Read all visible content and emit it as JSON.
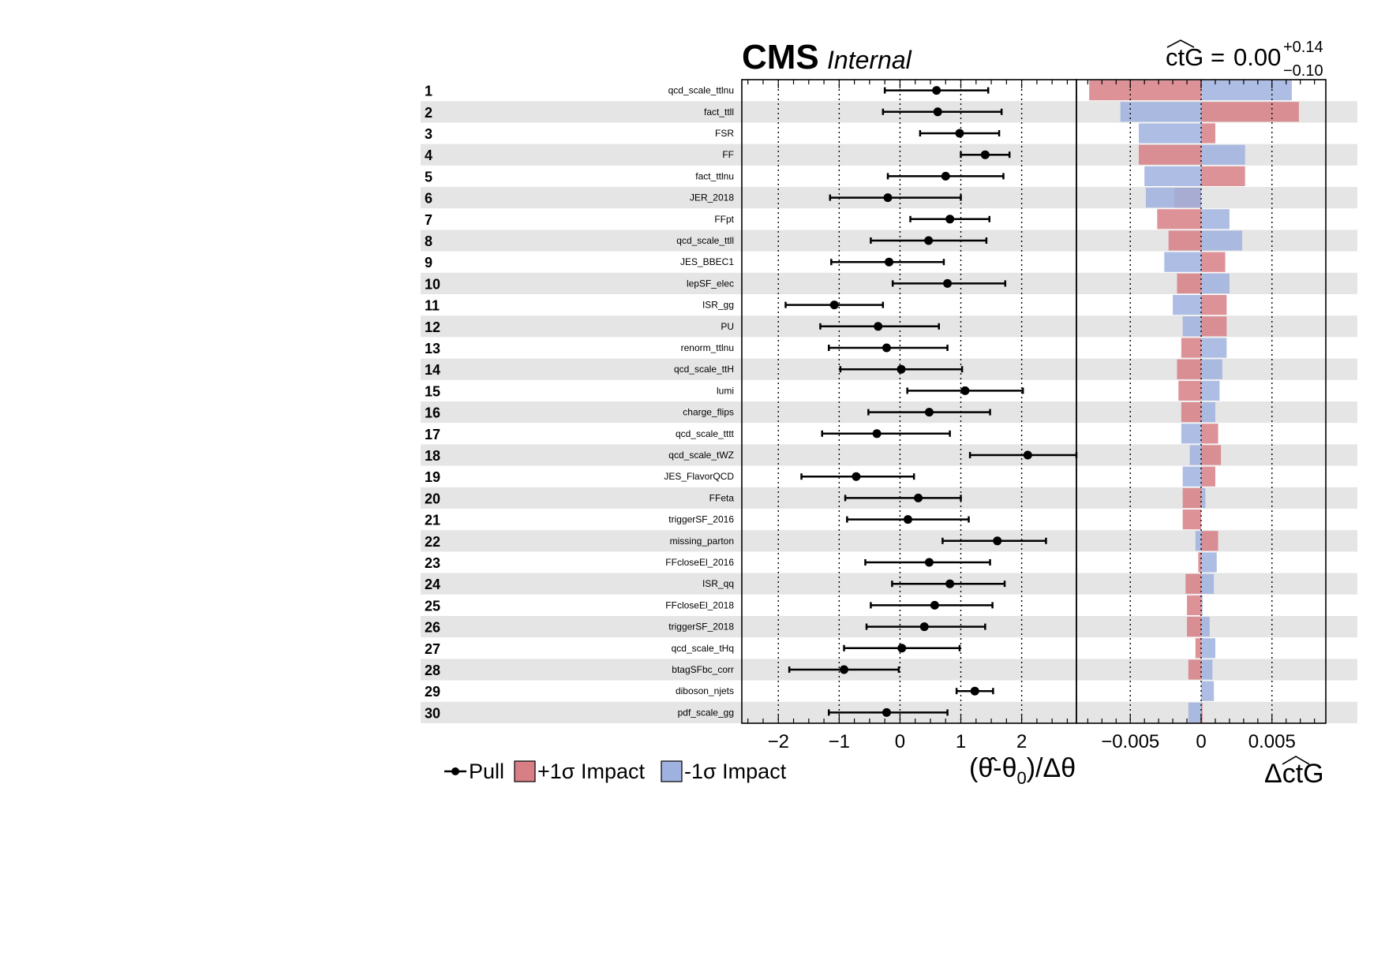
{
  "header": {
    "experiment": "CMS",
    "status": "Internal",
    "poi_result": {
      "name": "ctG",
      "value": "0.00",
      "err_up": "+0.14",
      "err_down": "−0.10"
    }
  },
  "legend": {
    "pull": "Pull",
    "impact_up": "+1σ Impact",
    "impact_down": "-1σ Impact"
  },
  "colors": {
    "impact_up": "#d77f85",
    "impact_down": "#9fb1de",
    "band": "#e5e5e5",
    "pull": "#000000"
  },
  "chart_data": {
    "type": "impact-pull",
    "pull_axis": {
      "label_prefix": "(",
      "label_theta": "θ̂",
      "label_minus": "-θ",
      "label_sub": "0",
      "label_suffix": ")/Δθ",
      "range": [
        -2.6,
        2.9
      ],
      "ticks": [
        -2,
        -1,
        0,
        1,
        2
      ],
      "tick_labels": [
        "−2",
        "−1",
        "0",
        "1",
        "2"
      ],
      "dotted_lines": [
        -2,
        -1,
        0,
        1,
        2
      ]
    },
    "impact_axis": {
      "label_delta": "Δ",
      "label_poi": "ctG",
      "range": [
        -0.0088,
        0.0088
      ],
      "ticks": [
        -0.005,
        0,
        0.005
      ],
      "tick_labels": [
        "−0.005",
        "0",
        "0.005"
      ],
      "dotted_lines": [
        -0.005,
        0,
        0.005
      ]
    },
    "rows": [
      {
        "rank": "1",
        "name": "qcd_scale_ttlnu",
        "pull": 0.6,
        "err_lo": 0.85,
        "err_hi": 0.85,
        "impact_up": -0.0079,
        "impact_down": 0.0064
      },
      {
        "rank": "2",
        "name": "fact_ttll",
        "pull": 0.62,
        "err_lo": 0.9,
        "err_hi": 1.05,
        "impact_up": 0.0069,
        "impact_down": -0.0057
      },
      {
        "rank": "3",
        "name": "FSR",
        "pull": 0.98,
        "err_lo": 0.65,
        "err_hi": 0.65,
        "impact_up": 0.001,
        "impact_down": -0.0044
      },
      {
        "rank": "4",
        "name": "FF",
        "pull": 1.4,
        "err_lo": 0.4,
        "err_hi": 0.4,
        "impact_up": -0.0044,
        "impact_down": 0.0031
      },
      {
        "rank": "5",
        "name": "fact_ttlnu",
        "pull": 0.75,
        "err_lo": 0.95,
        "err_hi": 0.95,
        "impact_up": 0.0031,
        "impact_down": -0.004
      },
      {
        "rank": "6",
        "name": "JER_2018",
        "pull": -0.2,
        "err_lo": 0.95,
        "err_hi": 1.2,
        "impact_up": -0.0019,
        "impact_down": -0.0039
      },
      {
        "rank": "7",
        "name": "FFpt",
        "pull": 0.82,
        "err_lo": 0.65,
        "err_hi": 0.65,
        "impact_up": -0.0031,
        "impact_down": 0.002
      },
      {
        "rank": "8",
        "name": "qcd_scale_ttll",
        "pull": 0.47,
        "err_lo": 0.95,
        "err_hi": 0.95,
        "impact_up": -0.0023,
        "impact_down": 0.0029
      },
      {
        "rank": "9",
        "name": "JES_BBEC1",
        "pull": -0.18,
        "err_lo": 0.95,
        "err_hi": 0.9,
        "impact_up": 0.0017,
        "impact_down": -0.0026
      },
      {
        "rank": "10",
        "name": "lepSF_elec",
        "pull": 0.78,
        "err_lo": 0.9,
        "err_hi": 0.95,
        "impact_up": -0.0017,
        "impact_down": 0.002
      },
      {
        "rank": "11",
        "name": "ISR_gg",
        "pull": -1.08,
        "err_lo": 0.8,
        "err_hi": 0.8,
        "impact_up": 0.0018,
        "impact_down": -0.002
      },
      {
        "rank": "12",
        "name": "PU",
        "pull": -0.36,
        "err_lo": 0.95,
        "err_hi": 1.0,
        "impact_up": 0.0018,
        "impact_down": -0.0013
      },
      {
        "rank": "13",
        "name": "renorm_ttlnu",
        "pull": -0.22,
        "err_lo": 0.95,
        "err_hi": 1.0,
        "impact_up": -0.0014,
        "impact_down": 0.0018
      },
      {
        "rank": "14",
        "name": "qcd_scale_ttH",
        "pull": 0.02,
        "err_lo": 1.0,
        "err_hi": 1.0,
        "impact_up": -0.0017,
        "impact_down": 0.0015
      },
      {
        "rank": "15",
        "name": "lumi",
        "pull": 1.07,
        "err_lo": 0.95,
        "err_hi": 0.95,
        "impact_up": -0.0016,
        "impact_down": 0.0013
      },
      {
        "rank": "16",
        "name": "charge_flips",
        "pull": 0.48,
        "err_lo": 1.0,
        "err_hi": 1.0,
        "impact_up": -0.0014,
        "impact_down": 0.001
      },
      {
        "rank": "17",
        "name": "qcd_scale_tttt",
        "pull": -0.38,
        "err_lo": 0.9,
        "err_hi": 1.2,
        "impact_up": 0.0012,
        "impact_down": -0.0014
      },
      {
        "rank": "18",
        "name": "qcd_scale_tWZ",
        "pull": 2.1,
        "err_lo": 0.95,
        "err_hi": 0.8,
        "impact_up": 0.0014,
        "impact_down": -0.0008
      },
      {
        "rank": "19",
        "name": "JES_FlavorQCD",
        "pull": -0.72,
        "err_lo": 0.9,
        "err_hi": 0.95,
        "impact_up": 0.001,
        "impact_down": -0.0013
      },
      {
        "rank": "20",
        "name": "FFeta",
        "pull": 0.3,
        "err_lo": 1.2,
        "err_hi": 0.7,
        "impact_up": -0.0013,
        "impact_down": 0.0003
      },
      {
        "rank": "21",
        "name": "triggerSF_2016",
        "pull": 0.13,
        "err_lo": 1.0,
        "err_hi": 1.0,
        "impact_up": -0.0013,
        "impact_down": 0.0
      },
      {
        "rank": "22",
        "name": "missing_parton",
        "pull": 1.6,
        "err_lo": 0.9,
        "err_hi": 0.8,
        "impact_up": 0.0012,
        "impact_down": -0.0004
      },
      {
        "rank": "23",
        "name": "FFcloseEl_2016",
        "pull": 0.48,
        "err_lo": 1.05,
        "err_hi": 1.0,
        "impact_up": -0.0002,
        "impact_down": 0.0011
      },
      {
        "rank": "24",
        "name": "ISR_qq",
        "pull": 0.82,
        "err_lo": 0.95,
        "err_hi": 0.9,
        "impact_up": -0.0011,
        "impact_down": 0.0009
      },
      {
        "rank": "25",
        "name": "FFcloseEl_2018",
        "pull": 0.57,
        "err_lo": 1.05,
        "err_hi": 0.95,
        "impact_up": -0.001,
        "impact_down": 0.0001
      },
      {
        "rank": "26",
        "name": "triggerSF_2018",
        "pull": 0.4,
        "err_lo": 0.95,
        "err_hi": 1.0,
        "impact_up": -0.001,
        "impact_down": 0.0006
      },
      {
        "rank": "27",
        "name": "qcd_scale_tHq",
        "pull": 0.03,
        "err_lo": 0.95,
        "err_hi": 0.95,
        "impact_up": -0.0004,
        "impact_down": 0.001
      },
      {
        "rank": "28",
        "name": "btagSFbc_corr",
        "pull": -0.92,
        "err_lo": 0.9,
        "err_hi": 0.9,
        "impact_up": -0.0009,
        "impact_down": 0.0008
      },
      {
        "rank": "29",
        "name": "diboson_njets",
        "pull": 1.23,
        "err_lo": 0.3,
        "err_hi": 0.3,
        "impact_up": 0.0,
        "impact_down": 0.0009
      },
      {
        "rank": "30",
        "name": "pdf_scale_gg",
        "pull": -0.22,
        "err_lo": 0.95,
        "err_hi": 1.0,
        "impact_up": 0.0001,
        "impact_down": -0.0009
      }
    ]
  }
}
